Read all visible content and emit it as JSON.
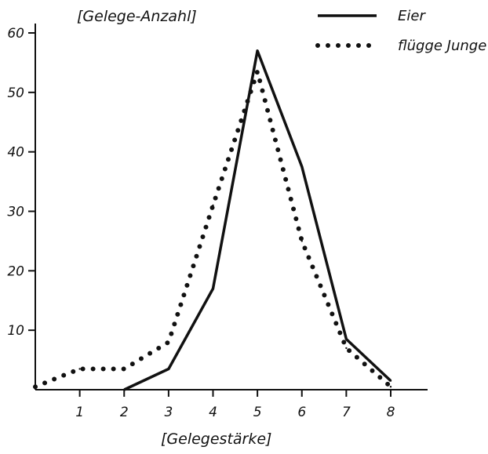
{
  "chart_data": {
    "type": "line",
    "ylabel": "[Gelege-Anzahl]",
    "xlabel": "[Gelegestärke]",
    "x": [
      0,
      1,
      2,
      3,
      4,
      5,
      6,
      7,
      8
    ],
    "xticks": [
      "1",
      "2",
      "3",
      "4",
      "5",
      "6",
      "7",
      "8"
    ],
    "yticks": [
      "10",
      "20",
      "30",
      "40",
      "50",
      "60"
    ],
    "xlim": [
      0,
      8
    ],
    "ylim": [
      0,
      60
    ],
    "grid": false,
    "legend_position": "top-right",
    "series": [
      {
        "name": "Eier",
        "style": "solid",
        "x": [
          2,
          3,
          4,
          5,
          6,
          7,
          8
        ],
        "values": [
          0,
          3.5,
          17,
          57,
          37.5,
          8.5,
          1.5
        ]
      },
      {
        "name": "flügge Junge",
        "style": "dotted",
        "x": [
          0,
          1,
          2,
          3,
          4,
          5,
          6,
          7,
          8
        ],
        "values": [
          0.5,
          3.5,
          3.5,
          8,
          31,
          53.5,
          25,
          7,
          0.5
        ]
      }
    ]
  }
}
